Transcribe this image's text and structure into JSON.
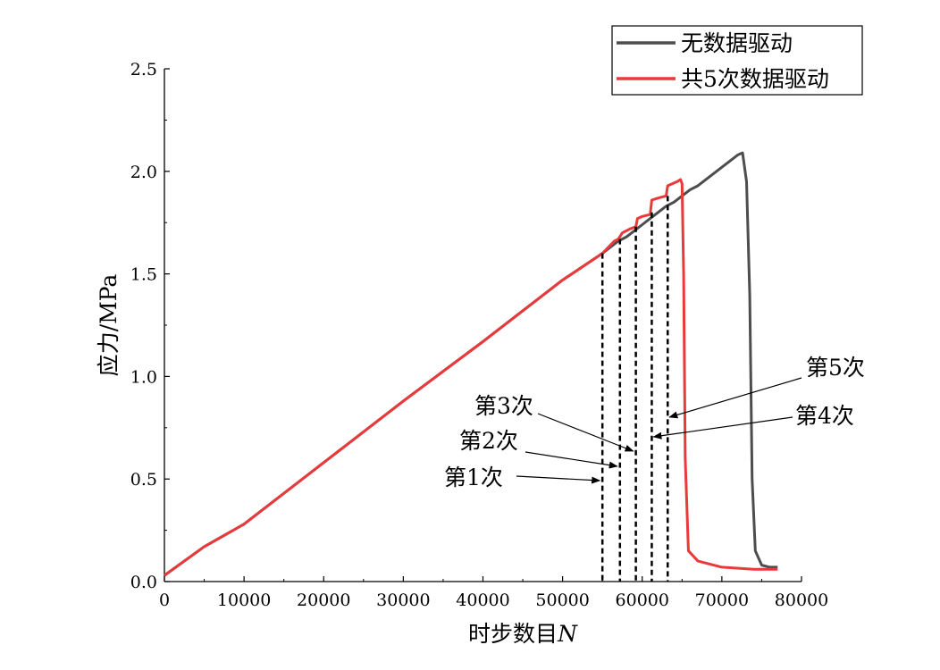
{
  "chart_data": {
    "type": "line",
    "xlabel_main": "时步数目",
    "xlabel_var": "N",
    "ylabel": "应力/MPa",
    "xlim": [
      0,
      80000
    ],
    "ylim": [
      0,
      2.5
    ],
    "x_ticks": [
      0,
      10000,
      20000,
      30000,
      40000,
      50000,
      60000,
      70000,
      80000
    ],
    "x_tick_labels": [
      "0",
      "10000",
      "20000",
      "30000",
      "40000",
      "50000",
      "60000",
      "70000",
      "80000"
    ],
    "y_ticks": [
      0,
      0.5,
      1.0,
      1.5,
      2.0,
      2.5
    ],
    "y_tick_labels": [
      "0.0",
      "0.5",
      "1.0",
      "1.5",
      "2.0",
      "2.5"
    ],
    "grid": false,
    "legend_position": "top-right",
    "series": [
      {
        "name": "无数据驱动",
        "color": "#4d4d4d",
        "x": [
          0,
          5000,
          10000,
          20000,
          30000,
          40000,
          50000,
          55000,
          56000,
          57000,
          58000,
          59000,
          60000,
          61000,
          62000,
          63000,
          64000,
          65000,
          66000,
          67000,
          68000,
          69000,
          70000,
          71000,
          72000,
          72600,
          73100,
          73500,
          73800,
          74200,
          75000,
          76000,
          77000
        ],
        "y": [
          0.03,
          0.17,
          0.28,
          0.58,
          0.88,
          1.17,
          1.47,
          1.6,
          1.63,
          1.66,
          1.68,
          1.71,
          1.74,
          1.77,
          1.8,
          1.83,
          1.85,
          1.88,
          1.91,
          1.93,
          1.96,
          1.99,
          2.02,
          2.05,
          2.08,
          2.09,
          1.95,
          1.4,
          0.5,
          0.15,
          0.08,
          0.07,
          0.07
        ]
      },
      {
        "name": "共5次数据驱动",
        "color": "#e83a3a",
        "x": [
          0,
          5000,
          10000,
          20000,
          30000,
          40000,
          50000,
          55000,
          55500,
          56000,
          56500,
          57000,
          57500,
          58000,
          58500,
          59200,
          59400,
          60000,
          61000,
          61200,
          62000,
          63000,
          63200,
          63800,
          64400,
          64800,
          65000,
          65200,
          65400,
          65800,
          67000,
          70000,
          74000,
          77000
        ],
        "y": [
          0.03,
          0.17,
          0.28,
          0.58,
          0.88,
          1.17,
          1.47,
          1.6,
          1.62,
          1.64,
          1.66,
          1.67,
          1.7,
          1.71,
          1.72,
          1.73,
          1.77,
          1.78,
          1.79,
          1.86,
          1.87,
          1.88,
          1.93,
          1.94,
          1.95,
          1.96,
          1.94,
          1.5,
          0.6,
          0.15,
          0.1,
          0.07,
          0.06,
          0.06
        ]
      }
    ],
    "markers": [
      {
        "label": "第1次",
        "x": 55000,
        "y_top": 1.6
      },
      {
        "label": "第2次",
        "x": 57200,
        "y_top": 1.67
      },
      {
        "label": "第3次",
        "x": 59200,
        "y_top": 1.73
      },
      {
        "label": "第4次",
        "x": 61200,
        "y_top": 1.8
      },
      {
        "label": "第5次",
        "x": 63200,
        "y_top": 1.88
      }
    ]
  }
}
